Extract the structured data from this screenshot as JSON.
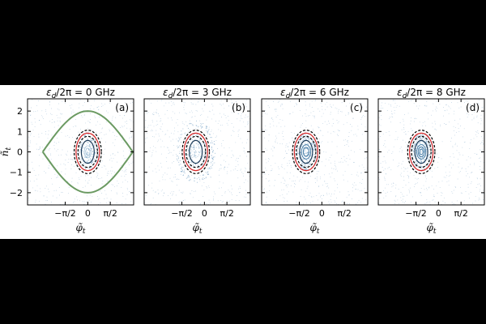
{
  "chart_data": [
    {
      "type": "scatter",
      "panel": "(a)",
      "title": "ε_d/2π = 0 GHz",
      "xlabel": "φ̃_t",
      "ylabel": "ñ_t",
      "xlim": [
        -4.2,
        3.2
      ],
      "ylim": [
        -2.6,
        2.6
      ],
      "xticks": [
        "−π/2",
        "0",
        "π/2"
      ],
      "xtick_values": [
        -1.5708,
        0,
        1.5708
      ],
      "yticks": [
        "−2",
        "−1",
        "0",
        "1",
        "2"
      ],
      "ytick_values": [
        -2,
        -1,
        0,
        1,
        2
      ],
      "center": [
        0,
        0
      ],
      "series": [
        {
          "kind": "separatrix",
          "color": "#6b9a62",
          "amplitude": 2.0,
          "half_width": 3.1416
        },
        {
          "kind": "contour",
          "color": "#000000",
          "dashed": true,
          "rx": 0.95,
          "ry": 0.95
        },
        {
          "kind": "contour",
          "color": "#d62728",
          "dashed": false,
          "rx": 0.82,
          "ry": 0.82
        },
        {
          "kind": "contour",
          "color": "#000000",
          "dashed": true,
          "rx": 0.68,
          "ry": 0.68
        },
        {
          "kind": "contour",
          "color": "#1f3d5a",
          "dashed": false,
          "rx": 0.45,
          "ry": 0.5
        }
      ],
      "scatter_density": "uniform"
    },
    {
      "type": "scatter",
      "panel": "(b)",
      "title": "ε_d/2π = 3 GHz",
      "xlabel": "φ̃_t",
      "ylabel": "",
      "xlim": [
        -4.2,
        3.2
      ],
      "ylim": [
        -2.6,
        2.6
      ],
      "xticks": [
        "−π/2",
        "0",
        "π/2"
      ],
      "xtick_values": [
        -1.5708,
        0,
        1.5708
      ],
      "center": [
        -0.6,
        0
      ],
      "series": [
        {
          "kind": "contour",
          "color": "#000000",
          "dashed": true,
          "rx": 0.95,
          "ry": 0.95
        },
        {
          "kind": "contour",
          "color": "#d62728",
          "dashed": false,
          "rx": 0.82,
          "ry": 0.82
        },
        {
          "kind": "contour",
          "color": "#000000",
          "dashed": true,
          "rx": 0.68,
          "ry": 0.68
        },
        {
          "kind": "contour",
          "color": "#1f3d5a",
          "dashed": false,
          "rx": 0.45,
          "ry": 0.5
        }
      ],
      "scatter_density": "ring"
    },
    {
      "type": "scatter",
      "panel": "(c)",
      "title": "ε_d/2π = 6 GHz",
      "xlabel": "φ̃_t",
      "ylabel": "",
      "xlim": [
        -4.2,
        3.2
      ],
      "ylim": [
        -2.6,
        2.6
      ],
      "xticks": [
        "−π/2",
        "0",
        "π/2"
      ],
      "xtick_values": [
        -1.5708,
        0,
        1.5708
      ],
      "center": [
        -1.1,
        0
      ],
      "series": [
        {
          "kind": "contour",
          "color": "#000000",
          "dashed": true,
          "rx": 0.95,
          "ry": 0.95
        },
        {
          "kind": "contour",
          "color": "#d62728",
          "dashed": false,
          "rx": 0.82,
          "ry": 0.82
        },
        {
          "kind": "contour",
          "color": "#000000",
          "dashed": true,
          "rx": 0.68,
          "ry": 0.68
        },
        {
          "kind": "contour",
          "color": "#1f3d5a",
          "dashed": false,
          "rx": 0.45,
          "ry": 0.5
        }
      ],
      "scatter_density": "core"
    },
    {
      "type": "scatter",
      "panel": "(d)",
      "title": "ε_d/2π = 8 GHz",
      "xlabel": "φ̃_t",
      "ylabel": "",
      "xlim": [
        -4.2,
        3.2
      ],
      "ylim": [
        -2.6,
        2.6
      ],
      "xticks": [
        "−π/2",
        "0",
        "π/2"
      ],
      "xtick_values": [
        -1.5708,
        0,
        1.5708
      ],
      "center": [
        -1.2,
        0
      ],
      "series": [
        {
          "kind": "contour",
          "color": "#000000",
          "dashed": true,
          "rx": 0.95,
          "ry": 0.95
        },
        {
          "kind": "contour",
          "color": "#d62728",
          "dashed": false,
          "rx": 0.82,
          "ry": 0.82
        },
        {
          "kind": "contour",
          "color": "#000000",
          "dashed": true,
          "rx": 0.68,
          "ry": 0.68
        },
        {
          "kind": "contour",
          "color": "#1f3d5a",
          "dashed": false,
          "rx": 0.45,
          "ry": 0.5
        }
      ],
      "scatter_density": "tight-core"
    }
  ],
  "colors": {
    "scatter": "#7fa8c9",
    "separatrix": "#6b9a62",
    "red_contour": "#d62728",
    "inner_contour": "#1f3d5a"
  }
}
